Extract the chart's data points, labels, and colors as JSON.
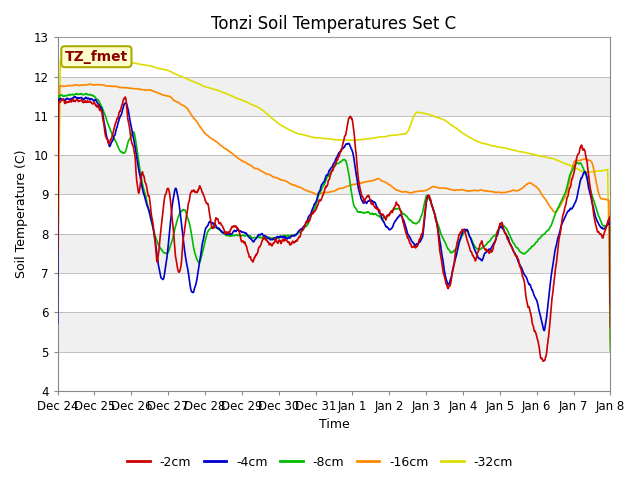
{
  "title": "Tonzi Soil Temperatures Set C",
  "xlabel": "Time",
  "ylabel": "Soil Temperature (C)",
  "ylim": [
    4.0,
    13.0
  ],
  "yticks": [
    4.0,
    5.0,
    6.0,
    7.0,
    8.0,
    9.0,
    10.0,
    11.0,
    12.0,
    13.0
  ],
  "xtick_labels": [
    "Dec 24",
    "Dec 25",
    "Dec 26",
    "Dec 27",
    "Dec 28",
    "Dec 29",
    "Dec 30",
    "Dec 31",
    "Jan 1",
    "Jan 2",
    "Jan 3",
    "Jan 4",
    "Jan 5",
    "Jan 6",
    "Jan 7",
    "Jan 8"
  ],
  "colors": {
    "-2cm": "#cc0000",
    "-4cm": "#0000cc",
    "-8cm": "#00bb00",
    "-16cm": "#ff8800",
    "-32cm": "#dddd00"
  },
  "annotation_text": "TZ_fmet",
  "annotation_color": "#8B0000",
  "annotation_bg": "#ffffcc",
  "annotation_border": "#aaaa00",
  "bg_light": "#f0f0f0",
  "bg_dark": "#e0e0e0",
  "line_width": 1.2,
  "title_fontsize": 12,
  "label_fontsize": 9,
  "tick_fontsize": 8.5
}
